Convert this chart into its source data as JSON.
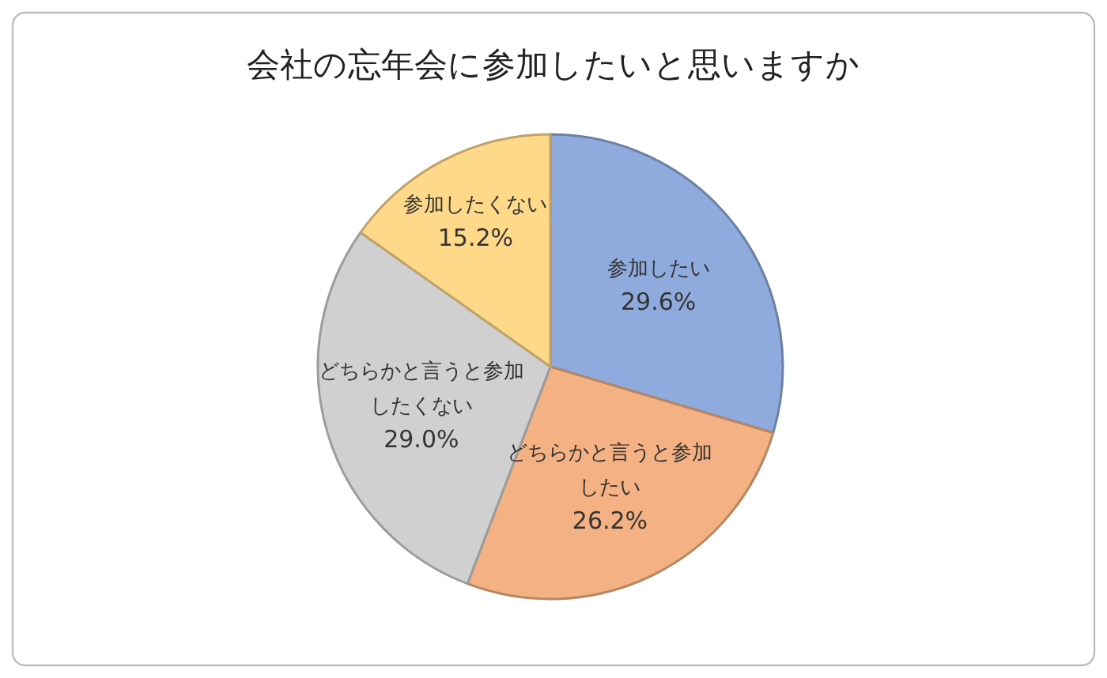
{
  "chart_data": {
    "type": "pie",
    "title": "会社の忘年会に参加したいと思いますか",
    "categories": [
      "参加したい",
      "どちらかと言うと参加したい",
      "どちらかと言うと参加したくない",
      "参加したくない"
    ],
    "values": [
      29.6,
      26.2,
      29.0,
      15.2
    ],
    "colors": [
      "#8faadc",
      "#f4b183",
      "#d0d0d0",
      "#ffd98a"
    ],
    "value_labels": [
      "29.6%",
      "26.2%",
      "29.0%",
      "15.2%"
    ]
  }
}
